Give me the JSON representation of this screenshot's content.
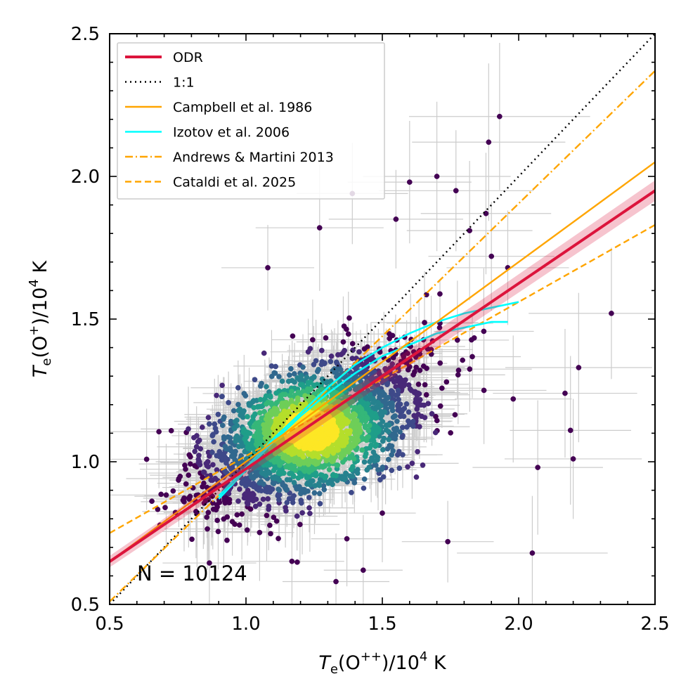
{
  "chart_data": {
    "type": "scatter",
    "xlabel": {
      "italic": "T",
      "sub": "e",
      "rest": "(O",
      "sup": "++",
      "tail": ")/10",
      "pow": "4",
      "unit": " K"
    },
    "ylabel": {
      "italic": "T",
      "sub": "e",
      "rest": "(O",
      "sup": "+",
      "tail": ")/10",
      "pow": "4",
      "unit": " K"
    },
    "xlim": [
      0.5,
      2.5
    ],
    "ylim": [
      0.5,
      2.5
    ],
    "xticks": [
      "0.5",
      "1.0",
      "1.5",
      "2.0",
      "2.5"
    ],
    "yticks": [
      "0.5",
      "1.0",
      "1.5",
      "2.0",
      "2.5"
    ],
    "grid": false,
    "legend_position": "top-left",
    "annotation": "N = 10124",
    "density_center": [
      1.24,
      1.11
    ],
    "point_color_low": "#440154",
    "point_color_high": "#fde725",
    "errorbar_color": "#cccccc",
    "lines": [
      {
        "name": "ODR",
        "style": "solid",
        "color": "#dc143c",
        "slope": 0.65,
        "intercept": 0.325,
        "x_range": [
          0.5,
          2.5
        ],
        "band": 0.02
      },
      {
        "name": "1:1",
        "style": "dotted",
        "color": "#000000",
        "slope": 1.0,
        "intercept": 0.0,
        "x_range": [
          0.5,
          2.5
        ]
      },
      {
        "name": "Campbell et al. 1986",
        "style": "solid",
        "color": "#ffa500",
        "slope": 0.7,
        "intercept": 0.3,
        "x_range": [
          0.5,
          2.5
        ]
      },
      {
        "name": "Izotov et al. 2006",
        "style": "solid",
        "color": "#00ffff",
        "curves": [
          {
            "x": [
              0.9,
              1.0,
              1.1,
              1.2,
              1.3,
              1.4,
              1.5,
              1.6,
              1.7,
              1.8,
              1.9,
              2.0
            ],
            "y": [
              0.88,
              0.98,
              1.08,
              1.17,
              1.26,
              1.34,
              1.4,
              1.45,
              1.49,
              1.52,
              1.54,
              1.56
            ]
          },
          {
            "x": [
              0.9,
              1.0,
              1.1,
              1.2,
              1.3,
              1.4,
              1.5,
              1.6,
              1.7,
              1.8,
              1.9,
              1.96
            ],
            "y": [
              0.87,
              0.97,
              1.07,
              1.16,
              1.24,
              1.31,
              1.37,
              1.41,
              1.45,
              1.47,
              1.49,
              1.49
            ]
          }
        ]
      },
      {
        "name": "Andrews & Martini 2013",
        "style": "dashdot",
        "color": "#ffa500",
        "slope": 0.93,
        "intercept": 0.045,
        "x_range": [
          0.5,
          2.5
        ]
      },
      {
        "name": "Cataldi et al. 2025",
        "style": "dashed",
        "color": "#ffa500",
        "slope": 0.54,
        "intercept": 0.48,
        "x_range": [
          0.5,
          2.5
        ]
      }
    ],
    "outliers": [
      [
        1.93,
        2.21
      ],
      [
        1.89,
        2.12
      ],
      [
        1.7,
        2.0
      ],
      [
        1.77,
        1.95
      ],
      [
        1.88,
        1.87
      ],
      [
        1.6,
        1.98
      ],
      [
        1.82,
        1.81
      ],
      [
        1.9,
        1.72
      ],
      [
        1.96,
        1.68
      ],
      [
        2.34,
        1.52
      ],
      [
        2.22,
        1.33
      ],
      [
        2.17,
        1.24
      ],
      [
        2.19,
        1.11
      ],
      [
        2.2,
        1.01
      ],
      [
        2.05,
        0.68
      ],
      [
        1.43,
        0.62
      ],
      [
        1.33,
        0.58
      ],
      [
        1.74,
        0.72
      ],
      [
        1.37,
        0.73
      ],
      [
        0.95,
        0.79
      ],
      [
        1.08,
        1.68
      ],
      [
        1.39,
        1.94
      ],
      [
        1.55,
        1.85
      ],
      [
        1.27,
        1.82
      ],
      [
        2.07,
        0.98
      ],
      [
        1.98,
        1.22
      ],
      [
        1.5,
        0.82
      ],
      [
        0.86,
        1.0
      ]
    ]
  }
}
